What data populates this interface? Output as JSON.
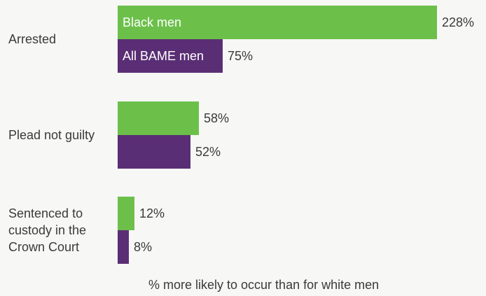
{
  "chart_data": {
    "type": "bar",
    "orientation": "horizontal",
    "categories": [
      [
        "Arrested"
      ],
      [
        "Plead not guilty"
      ],
      [
        "Sentenced to",
        "custody in the",
        "Crown Court"
      ]
    ],
    "series": [
      {
        "name": "Black men",
        "values": [
          228,
          58,
          12
        ],
        "color": "#6cc04a"
      },
      {
        "name": "All BAME men",
        "values": [
          75,
          52,
          8
        ],
        "color": "#5a2e74"
      }
    ],
    "value_labels": [
      [
        "228%",
        "58%",
        "12%"
      ],
      [
        "75%",
        "52%",
        "8%"
      ]
    ],
    "xlabel": "% more likely to occur than for white men",
    "ylabel": "",
    "title": "",
    "xlim": [
      0,
      228
    ],
    "grid": false,
    "legend": "inside first bars"
  }
}
